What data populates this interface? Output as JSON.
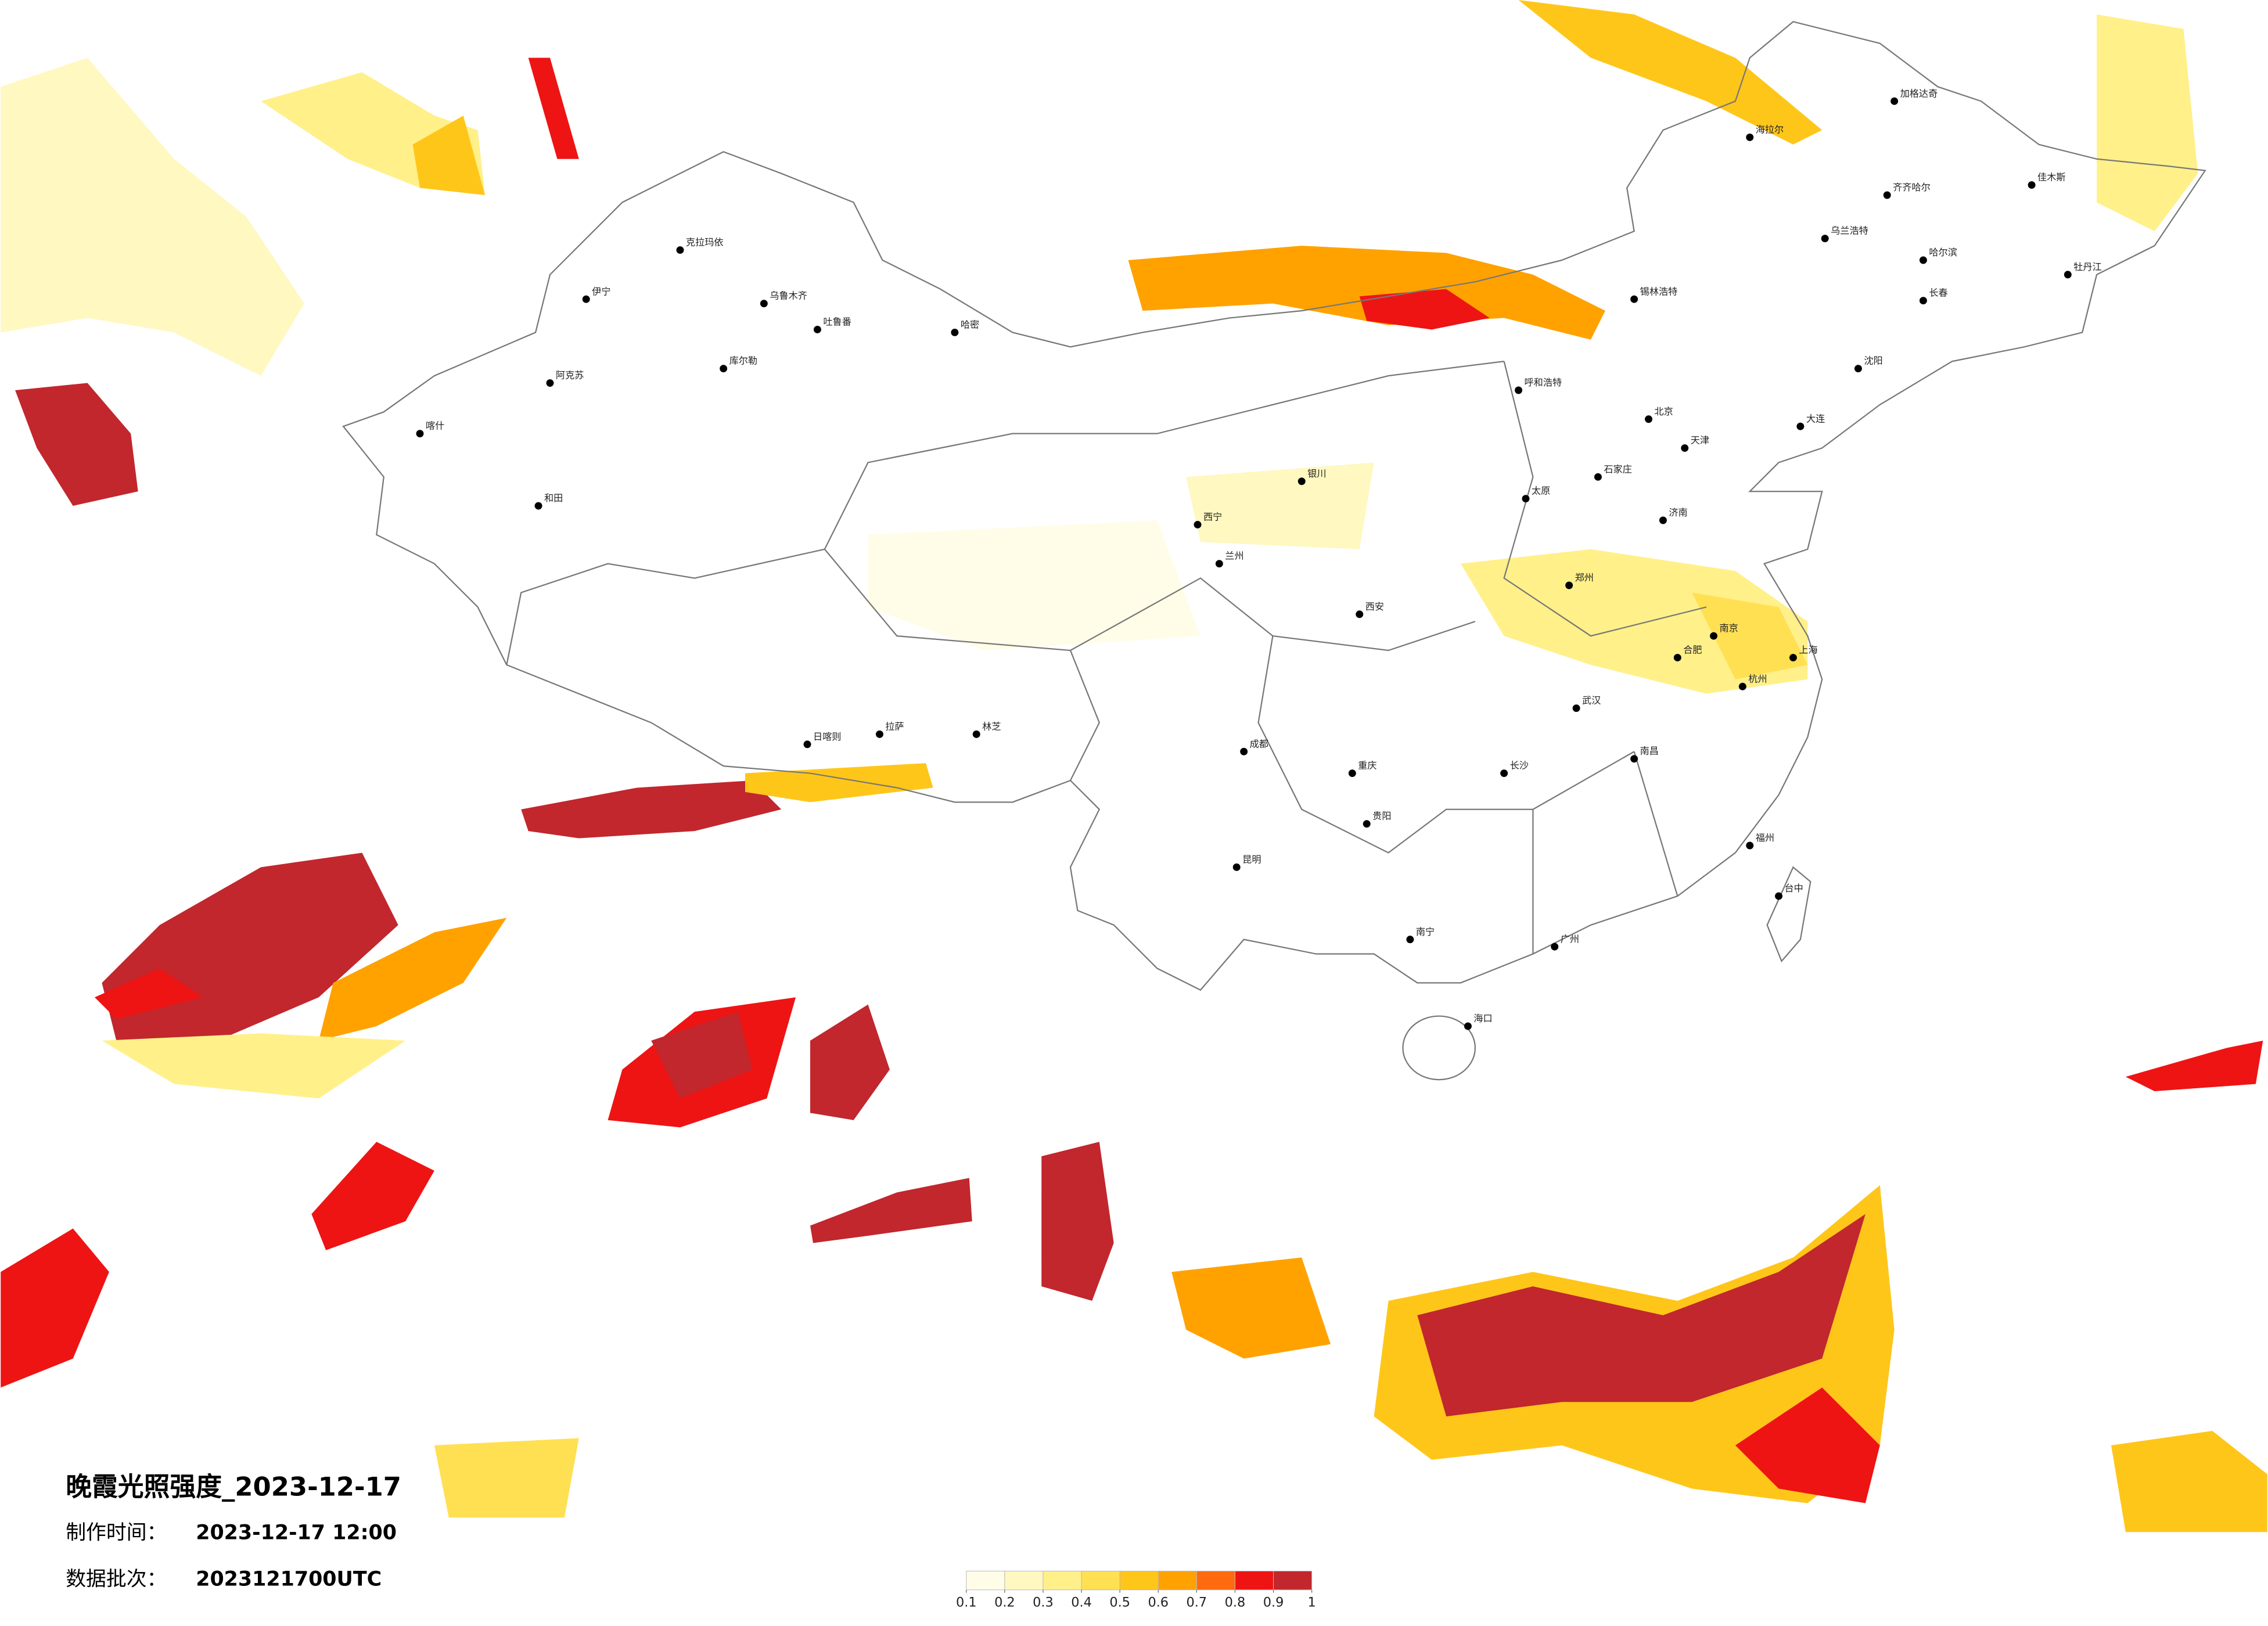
{
  "title": "晚霞光照强度_2023-12-17",
  "production": {
    "label": "制作时间：",
    "value": "2023-12-17 12:00"
  },
  "batch": {
    "label": "数据批次：",
    "value": "2023121700UTC"
  },
  "colorbar": {
    "ticks": [
      0.1,
      0.2,
      0.3,
      0.4,
      0.5,
      0.6,
      0.7,
      0.8,
      0.9,
      1
    ],
    "colors": [
      "#fffde8",
      "#fff8c0",
      "#fff08a",
      "#ffe052",
      "#ffc61a",
      "#ffa200",
      "#ff6a10",
      "#ee1414",
      "#c1272d"
    ]
  },
  "cities": [
    "克拉玛依",
    "伊宁",
    "乌鲁木齐",
    "吐鲁番",
    "哈密",
    "库尔勒",
    "阿克苏",
    "喀什",
    "和田",
    "拉萨",
    "日喀则",
    "林芝",
    "西宁",
    "兰州",
    "银川",
    "呼和浩特",
    "北京",
    "天津",
    "石家庄",
    "太原",
    "济南",
    "郑州",
    "西安",
    "成都",
    "重庆",
    "贵阳",
    "昆明",
    "南宁",
    "广州",
    "长沙",
    "武汉",
    "南昌",
    "福州",
    "杭州",
    "南京",
    "上海",
    "合肥",
    "哈尔滨",
    "长春",
    "沈阳",
    "海口",
    "台中",
    "大连",
    "乌兰浩特",
    "齐齐哈尔",
    "加格达奇",
    "海拉尔",
    "锡林浩特",
    "佳木斯",
    "牡丹江"
  ]
}
